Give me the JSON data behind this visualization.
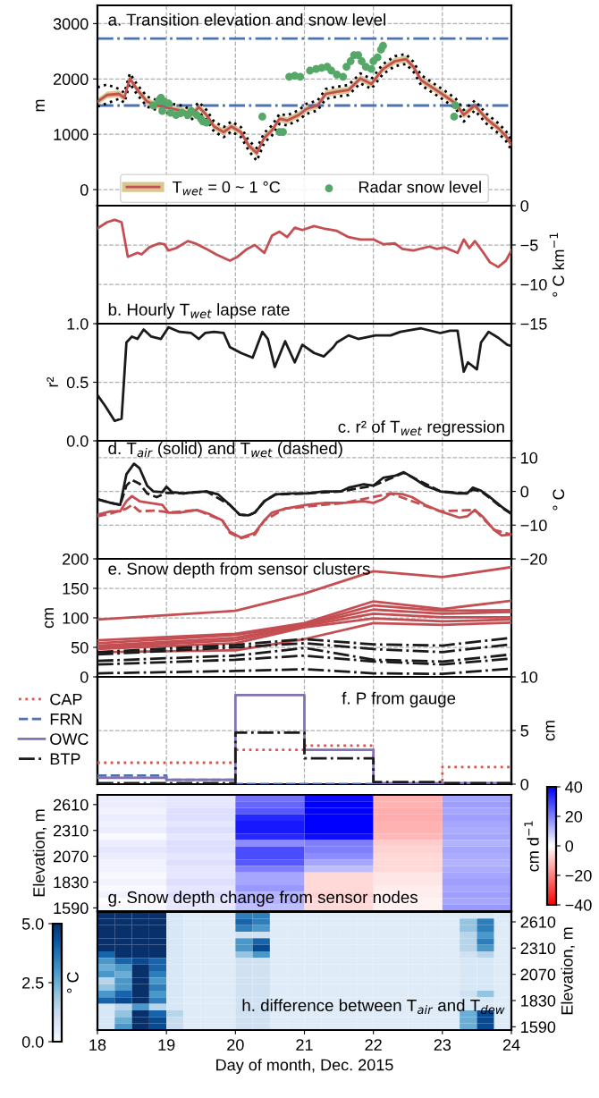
{
  "chart_data": [
    {
      "type": "line",
      "title": "a. Transition elevation and snow level",
      "ylabel": "m",
      "xlim": [
        18,
        24
      ],
      "xticks": [
        18,
        19,
        20,
        21,
        22,
        23,
        24
      ],
      "ylim": [
        -290,
        3330
      ],
      "yticks": [
        0,
        1000,
        2000,
        3000
      ],
      "tick_labels": "y",
      "grid": true,
      "legend": "bottom",
      "x": [
        18.0,
        18.14,
        18.31,
        18.39,
        18.47,
        18.58,
        18.72,
        18.92,
        19.08,
        19.25,
        19.36,
        19.47,
        19.58,
        19.69,
        19.83,
        19.94,
        20.08,
        20.19,
        20.31,
        20.42,
        20.53,
        20.64,
        20.75,
        20.92,
        21.03,
        21.19,
        21.31,
        21.47,
        21.64,
        21.81,
        21.97,
        22.14,
        22.31,
        22.47,
        22.58,
        22.69,
        22.86,
        23.03,
        23.19,
        23.31,
        23.47,
        23.64,
        23.81,
        23.92,
        24.0
      ],
      "ref_lines": [
        {
          "axis": "y",
          "value": 2730,
          "color": "#4c72b0",
          "line_style": "dashdot"
        },
        {
          "axis": "y",
          "value": 1520,
          "color": "#4c72b0",
          "line_style": "dashdot"
        }
      ],
      "series": [
        {
          "type": "line",
          "color": "#000000",
          "line_style": "dotted",
          "values": [
            1500,
            1560,
            1640,
            1570,
            1920,
            1710,
            1500,
            1410,
            1370,
            1330,
            1260,
            1400,
            1260,
            1050,
            950,
            1050,
            950,
            710,
            520,
            850,
            980,
            1190,
            1160,
            1260,
            1370,
            1430,
            1640,
            1680,
            1710,
            1920,
            1820,
            2090,
            2230,
            2270,
            2130,
            1890,
            1750,
            1610,
            1470,
            1230,
            1430,
            1190,
            1020,
            880,
            720
          ]
        },
        {
          "type": "line",
          "color": "#000000",
          "line_style": "dotted",
          "values": [
            1850,
            1900,
            1820,
            1750,
            2100,
            1890,
            1680,
            1590,
            1550,
            1510,
            1440,
            1580,
            1440,
            1230,
            1130,
            1230,
            1130,
            890,
            750,
            1030,
            1160,
            1370,
            1340,
            1440,
            1550,
            1610,
            1820,
            1860,
            1890,
            2100,
            2000,
            2270,
            2410,
            2450,
            2310,
            2070,
            1930,
            1790,
            1650,
            1440,
            1610,
            1370,
            1200,
            1060,
            900
          ]
        },
        {
          "type": "line",
          "name": "T$_{wet}$ = 0 ~ 1 °C",
          "color": "#c44e52",
          "line_style": "solid",
          "values": [
            1590,
            1710,
            1730,
            1660,
            2010,
            1800,
            1590,
            1500,
            1460,
            1420,
            1350,
            1490,
            1350,
            1140,
            1040,
            1140,
            1040,
            800,
            660,
            940,
            1070,
            1280,
            1250,
            1350,
            1460,
            1520,
            1730,
            1770,
            1800,
            2010,
            1910,
            2180,
            2320,
            2360,
            2220,
            1980,
            1840,
            1700,
            1560,
            1350,
            1520,
            1280,
            1110,
            970,
            810
          ],
          "lower": [
            1530,
            1650,
            1670,
            1600,
            1950,
            1740,
            1530,
            1440,
            1400,
            1360,
            1290,
            1430,
            1290,
            1080,
            980,
            1080,
            980,
            740,
            600,
            880,
            1010,
            1220,
            1190,
            1290,
            1400,
            1460,
            1670,
            1710,
            1740,
            1950,
            1850,
            2120,
            2260,
            2300,
            2160,
            1920,
            1780,
            1640,
            1500,
            1290,
            1460,
            1220,
            1050,
            910,
            750
          ],
          "upper": [
            1650,
            1770,
            1790,
            1720,
            2070,
            1860,
            1650,
            1560,
            1520,
            1480,
            1410,
            1550,
            1410,
            1200,
            1100,
            1200,
            1100,
            860,
            720,
            1000,
            1130,
            1340,
            1310,
            1410,
            1520,
            1580,
            1790,
            1830,
            1860,
            2070,
            1970,
            2240,
            2380,
            2420,
            2280,
            2040,
            1900,
            1760,
            1620,
            1410,
            1580,
            1340,
            1170,
            1030,
            870
          ]
        },
        {
          "type": "scatter",
          "name": "Radar snow level",
          "color": "#55a868",
          "marker": "circle",
          "x": [
            18.81,
            18.89,
            18.92,
            18.97,
            19.03,
            18.94,
            19.06,
            19.14,
            19.22,
            19.31,
            19.36,
            19.44,
            19.5,
            19.53,
            19.58,
            20.39,
            20.64,
            20.69,
            20.78,
            20.86,
            20.94,
            21.08,
            21.17,
            21.25,
            21.33,
            21.39,
            21.47,
            21.56,
            21.61,
            21.67,
            21.72,
            21.78,
            21.83,
            21.89,
            21.97,
            22.0,
            22.06,
            22.11,
            22.14,
            23.19,
            23.17
          ],
          "values": [
            1520,
            1610,
            1660,
            1590,
            1560,
            1420,
            1390,
            1350,
            1390,
            1350,
            1420,
            1350,
            1280,
            1230,
            1210,
            1320,
            1040,
            1040,
            2040,
            2060,
            2040,
            2150,
            2180,
            2200,
            2220,
            2150,
            2080,
            2040,
            2220,
            2320,
            2430,
            2430,
            2320,
            2220,
            2180,
            2320,
            2390,
            2530,
            2600,
            1520,
            1320
          ]
        }
      ]
    },
    {
      "type": "line",
      "title": "b. Hourly T$_{wet}$ lapse rate",
      "y2label": "° C km$^{−1}$",
      "xlim": [
        18,
        24
      ],
      "xticks": [
        18,
        19,
        20,
        21,
        22,
        23,
        24
      ],
      "y2lim": [
        -15,
        0
      ],
      "y2ticks": [
        0,
        {
          "value": -5,
          "label": "−5"
        },
        {
          "value": -10,
          "label": "−10"
        },
        {
          "value": -15,
          "label": "−15"
        }
      ],
      "tick_labels": "y",
      "grid": true,
      "series": [
        {
          "axis": "y2",
          "color": "#c44e52",
          "x": [
            18.0,
            18.14,
            18.25,
            18.35,
            18.44,
            18.58,
            18.64,
            18.75,
            18.89,
            18.97,
            19.03,
            19.14,
            19.31,
            19.42,
            19.58,
            19.72,
            19.92,
            20.03,
            20.17,
            20.28,
            20.42,
            20.53,
            20.64,
            20.75,
            20.86,
            20.97,
            21.14,
            21.28,
            21.47,
            21.64,
            21.81,
            22.0,
            22.14,
            22.31,
            22.42,
            22.58,
            22.81,
            22.92,
            23.03,
            23.22,
            23.31,
            23.39,
            23.47,
            23.58,
            23.69,
            23.81,
            23.92,
            24.0
          ],
          "values": [
            -2.9,
            -2.1,
            -1.8,
            -2.1,
            -6.5,
            -6.0,
            -6.2,
            -5.3,
            -4.8,
            -4.9,
            -5.7,
            -5.4,
            -4.5,
            -4.8,
            -5.5,
            -6.2,
            -7.0,
            -6.5,
            -5.5,
            -5.0,
            -6.0,
            -3.8,
            -3.3,
            -4.0,
            -2.8,
            -3.1,
            -2.6,
            -2.9,
            -3.2,
            -4.0,
            -4.3,
            -4.3,
            -4.9,
            -4.8,
            -5.5,
            -5.7,
            -5.2,
            -5.5,
            -5.3,
            -6.0,
            -4.3,
            -5.4,
            -4.5,
            -5.8,
            -7.2,
            -7.8,
            -7.0,
            -5.7
          ]
        }
      ]
    },
    {
      "type": "line",
      "title": "c. r² of T$_{wet}$ regression",
      "ylabel": "r²",
      "xlim": [
        18,
        24
      ],
      "xticks": [
        18,
        19,
        20,
        21,
        22,
        23,
        24
      ],
      "ylim": [
        0,
        1
      ],
      "yticks": [
        {
          "value": 0,
          "label": "0.0"
        },
        {
          "value": 0.5,
          "label": "0.5"
        },
        {
          "value": 1,
          "label": "1.0"
        }
      ],
      "tick_labels": "y",
      "grid": true,
      "series": [
        {
          "color": "#1a1a1a",
          "x": [
            18.0,
            18.11,
            18.25,
            18.35,
            18.42,
            18.5,
            18.58,
            18.67,
            18.78,
            18.92,
            19.03,
            19.19,
            19.36,
            19.47,
            19.56,
            19.69,
            19.83,
            19.92,
            20.08,
            20.25,
            20.39,
            20.47,
            20.57,
            20.72,
            20.86,
            20.97,
            21.14,
            21.28,
            21.42,
            21.47,
            21.64,
            21.78,
            22.03,
            22.25,
            22.39,
            22.69,
            22.97,
            23.11,
            23.22,
            23.31,
            23.37,
            23.5,
            23.56,
            23.67,
            23.81,
            23.94,
            24.0
          ],
          "values": [
            0.39,
            0.3,
            0.17,
            0.19,
            0.84,
            0.89,
            0.87,
            0.95,
            0.89,
            0.87,
            0.97,
            0.93,
            0.92,
            0.87,
            0.92,
            0.93,
            0.92,
            0.8,
            0.75,
            0.71,
            0.93,
            0.87,
            0.63,
            0.85,
            0.67,
            0.82,
            0.75,
            0.72,
            0.8,
            0.84,
            0.9,
            0.87,
            0.9,
            0.9,
            0.93,
            0.96,
            0.92,
            0.94,
            0.94,
            0.59,
            0.67,
            0.61,
            0.84,
            0.93,
            0.88,
            0.82,
            0.81
          ]
        }
      ]
    },
    {
      "type": "line",
      "title": "d. T$_{air}$ (solid) and T$_{wet}$ (dashed)",
      "y2label": "° C",
      "xlim": [
        18,
        24
      ],
      "xticks": [
        18,
        19,
        20,
        21,
        22,
        23,
        24
      ],
      "y2lim": [
        -20,
        15
      ],
      "y2ticks": [
        10,
        0,
        {
          "value": -10,
          "label": "−10"
        },
        {
          "value": -20,
          "label": "−20"
        }
      ],
      "tick_labels": "y",
      "grid": true,
      "series": [
        {
          "axis": "y2",
          "color": "#1a1a1a",
          "line_style": "solid",
          "x": [
            18.0,
            18.19,
            18.33,
            18.42,
            18.53,
            18.61,
            18.72,
            18.81,
            18.94,
            19.0,
            19.08,
            19.25,
            19.42,
            19.58,
            19.75,
            19.92,
            20.06,
            20.19,
            20.28,
            20.42,
            20.58,
            20.81,
            21.03,
            21.28,
            21.53,
            21.64,
            21.86,
            22.0,
            22.14,
            22.31,
            22.44,
            22.58,
            22.75,
            22.97,
            23.22,
            23.36,
            23.44,
            23.56,
            23.69,
            23.86,
            24.0
          ],
          "values": [
            -2.3,
            -3.4,
            -4.0,
            5.1,
            8.2,
            6.9,
            1.7,
            0,
            -0.2,
            1.4,
            -0.2,
            -0.6,
            -0.2,
            0,
            -0.9,
            -4.0,
            -6.9,
            -7.1,
            -6.3,
            -2.9,
            -0.9,
            -0.6,
            -0.6,
            0,
            0,
            1.1,
            2.1,
            1.7,
            4.0,
            4.6,
            5.7,
            4.0,
            1.7,
            0,
            -0.6,
            -0.6,
            1.1,
            0.2,
            -1.7,
            -4.6,
            -6.6
          ]
        },
        {
          "axis": "y2",
          "color": "#1a1a1a",
          "line_style": "dashed",
          "x": [
            18.0,
            18.19,
            18.33,
            18.42,
            18.5,
            18.61,
            18.72,
            18.86,
            19.0,
            19.25,
            19.58,
            19.92,
            20.06,
            20.19,
            20.28,
            20.42,
            20.58,
            21.03,
            21.53,
            22.0,
            22.44,
            22.97,
            23.36,
            23.44,
            23.56,
            23.69,
            23.86,
            24.0
          ],
          "values": [
            -2.3,
            -3.4,
            -4.0,
            1.7,
            3.4,
            2.3,
            -0.6,
            -1.7,
            -0.4,
            -0.6,
            0,
            -4.0,
            -6.9,
            -7.1,
            -6.3,
            -2.9,
            -0.9,
            -0.6,
            0,
            1.7,
            5.5,
            0,
            -0.6,
            0.5,
            0,
            -2.0,
            -4.8,
            -6.6
          ]
        },
        {
          "axis": "y2",
          "color": "#c44e52",
          "line_style": "solid",
          "x": [
            18.0,
            18.19,
            18.33,
            18.42,
            18.5,
            18.61,
            18.75,
            18.94,
            19.03,
            19.19,
            19.44,
            19.61,
            19.81,
            19.92,
            20.08,
            20.28,
            20.42,
            20.53,
            20.72,
            21.03,
            21.31,
            21.58,
            21.86,
            22.0,
            22.14,
            22.25,
            22.42,
            22.56,
            22.75,
            22.97,
            23.25,
            23.36,
            23.47,
            23.58,
            23.75,
            23.86,
            24.0
          ],
          "values": [
            -6.9,
            -5.9,
            -5.9,
            -2.9,
            -1.4,
            -2.9,
            -3.4,
            -4.0,
            -6.3,
            -6.3,
            -5.5,
            -6.6,
            -8.6,
            -12.0,
            -13.7,
            -12.3,
            -8.6,
            -6.3,
            -5.1,
            -4.0,
            -3.4,
            -3.4,
            -2.9,
            -3.4,
            -2.3,
            -0.6,
            -0.8,
            -1.7,
            -4.0,
            -5.9,
            -7.8,
            -7.4,
            -5.5,
            -7.4,
            -11.4,
            -13.1,
            -12.8
          ]
        },
        {
          "axis": "y2",
          "color": "#c44e52",
          "line_style": "dashed",
          "x": [
            18.0,
            18.19,
            18.42,
            18.5,
            18.61,
            18.81,
            18.94,
            19.03,
            19.44,
            19.81,
            19.92,
            20.08,
            20.28,
            20.42,
            20.72,
            21.58,
            22.25,
            22.97,
            23.47,
            23.75,
            24.0
          ],
          "values": [
            -7.4,
            -6.6,
            -5.1,
            -4.0,
            -5.9,
            -5.7,
            -5.9,
            -6.3,
            -5.5,
            -8.6,
            -12.3,
            -13.9,
            -12.8,
            -8.6,
            -5.1,
            -3.4,
            -0.6,
            -5.9,
            -5.5,
            -11.4,
            -12.8
          ]
        }
      ]
    },
    {
      "type": "line",
      "title": "e. Snow depth from sensor clusters",
      "ylabel": "cm",
      "xlim": [
        18,
        24
      ],
      "xticks": [
        18,
        19,
        20,
        21,
        22,
        23,
        24
      ],
      "ylim": [
        0,
        200
      ],
      "yticks": [
        0,
        50,
        100,
        150,
        200
      ],
      "tick_labels": "y",
      "grid": true,
      "x": [
        18,
        20,
        21,
        22,
        23,
        24
      ],
      "series": [
        {
          "color": "#c44e52",
          "line_style": "solid",
          "values": [
            97,
            112,
            141,
            179,
            169,
            186
          ]
        },
        {
          "color": "#c44e52",
          "line_style": "solid",
          "values": [
            62,
            73,
            91,
            128,
            115,
            129
          ]
        },
        {
          "color": "#c44e52",
          "line_style": "solid",
          "values": [
            57,
            71,
            89,
            121,
            112,
            113
          ]
        },
        {
          "color": "#c44e52",
          "line_style": "solid",
          "values": [
            53,
            66,
            88,
            114,
            107,
            110
          ]
        },
        {
          "color": "#c44e52",
          "line_style": "solid",
          "values": [
            50,
            62,
            86,
            107,
            101,
            101
          ]
        },
        {
          "color": "#c44e52",
          "line_style": "solid",
          "values": [
            47,
            57,
            84,
            99,
            94,
            97
          ]
        },
        {
          "color": "#c44e52",
          "line_style": "solid",
          "values": [
            42,
            45,
            64,
            91,
            88,
            92
          ]
        },
        {
          "color": "#1a1a1a",
          "line_style": "dashdot",
          "values": [
            42,
            54,
            64,
            55,
            53,
            66
          ]
        },
        {
          "color": "#1a1a1a",
          "line_style": "dashdot",
          "values": [
            38,
            50,
            57,
            47,
            42,
            55
          ]
        },
        {
          "color": "#1a1a1a",
          "line_style": "dashdot",
          "values": [
            27,
            36,
            49,
            29,
            26,
            38
          ]
        },
        {
          "color": "#1a1a1a",
          "line_style": "dashdot",
          "values": [
            21,
            29,
            36,
            26,
            21,
            31
          ]
        },
        {
          "color": "#1a1a1a",
          "line_style": "dashdot",
          "values": [
            6,
            10,
            13,
            6,
            5,
            14
          ]
        }
      ]
    },
    {
      "type": "step",
      "title": "f. P from gauge",
      "y2label": "cm",
      "xlim": [
        18,
        24
      ],
      "xticks": [
        18,
        19,
        20,
        21,
        22,
        23,
        24
      ],
      "y2lim": [
        0,
        10
      ],
      "y2ticks": [
        0,
        5,
        10
      ],
      "tick_labels": "y",
      "grid": true,
      "legend": "left",
      "x": [
        18,
        19,
        20,
        21,
        22,
        23,
        24
      ],
      "series": [
        {
          "axis": "y2",
          "name": "CAP",
          "color": "#d9534f",
          "line_style": "dotted",
          "values": [
            2.0,
            2.0,
            3.2,
            3.6,
            0.1,
            1.6,
            1.6
          ]
        },
        {
          "axis": "y2",
          "name": "FRN",
          "color": "#4c72b0",
          "line_style": "dashed",
          "values": [
            0.8,
            0.4,
            0,
            0,
            0,
            0,
            0
          ]
        },
        {
          "axis": "y2",
          "name": "OWC",
          "color": "#8172b2",
          "line_style": "solid",
          "values": [
            0.6,
            0.4,
            8.3,
            3.2,
            0.1,
            0.1,
            0.1
          ]
        },
        {
          "axis": "y2",
          "name": "BTP",
          "color": "#1a1a1a",
          "line_style": "dashdot",
          "values": [
            0.1,
            0.1,
            4.8,
            2.4,
            0.2,
            0.1,
            0.1
          ]
        }
      ]
    },
    {
      "type": "heatmap",
      "title": "g. Snow depth change from sensor nodes",
      "ylabel": "Elevation, m",
      "clabel": "cm d$^{−1}$",
      "xlim": [
        18,
        24
      ],
      "xticks": [
        18,
        19,
        20,
        21,
        22,
        23,
        24
      ],
      "tick_labels": "y",
      "x": [
        18.5,
        19.5,
        20.5,
        21.5,
        22.5,
        23.5
      ],
      "y_categories": [
        null,
        "2610",
        null,
        null,
        null,
        "2310",
        null,
        null,
        null,
        "2070",
        null,
        null,
        null,
        "1830",
        null,
        null,
        null,
        "1590"
      ],
      "clim": [
        -40,
        40
      ],
      "cticks": [
        {
          "value": 40,
          "label": "40"
        },
        {
          "value": 20,
          "label": "20"
        },
        {
          "value": 0,
          "label": "0"
        },
        {
          "value": -20,
          "label": "−20"
        },
        {
          "value": -40,
          "label": "−40"
        }
      ],
      "cells": [
        [
          3,
          4,
          22,
          38,
          -12,
          14
        ],
        [
          3,
          4,
          24,
          40,
          -12,
          15
        ],
        [
          2,
          5,
          26,
          40,
          -13,
          14
        ],
        [
          3,
          5,
          34,
          40,
          -13,
          15
        ],
        [
          2,
          4,
          36,
          40,
          -12,
          14
        ],
        [
          3,
          5,
          36,
          40,
          -12,
          13
        ],
        [
          1,
          4,
          34,
          38,
          -11,
          14
        ],
        [
          3,
          5,
          18,
          20,
          -8,
          12
        ],
        [
          4,
          5,
          28,
          20,
          -7,
          14
        ],
        [
          3,
          4,
          28,
          18,
          -6,
          13
        ],
        [
          2,
          5,
          26,
          14,
          -6,
          12
        ],
        [
          2,
          4,
          20,
          10,
          -6,
          13
        ],
        [
          1,
          4,
          14,
          -6,
          -4,
          14
        ],
        [
          2,
          5,
          14,
          -6,
          -4,
          15
        ],
        [
          1,
          4,
          16,
          -6,
          -3,
          14
        ],
        [
          2,
          5,
          12,
          -7,
          -3,
          15
        ],
        [
          0,
          4,
          12,
          -6,
          -2,
          14
        ],
        [
          1,
          4,
          10,
          -6,
          -2,
          16
        ]
      ]
    },
    {
      "type": "heatmap",
      "title": "h. difference between T$_{air}$ and T$_{dew}$",
      "xlabel": "Day of month, Dec. 2015",
      "ylabel": "Elevation, m",
      "clabel": "° C",
      "xlim": [
        18,
        24
      ],
      "xticks": [
        18,
        19,
        20,
        21,
        22,
        23,
        24
      ],
      "x": [
        18.125,
        18.375,
        18.625,
        18.875,
        19.125,
        19.375,
        19.625,
        19.875,
        20.125,
        20.375,
        20.625,
        20.875,
        21.125,
        21.375,
        21.625,
        21.875,
        22.125,
        22.375,
        22.625,
        22.875,
        23.125,
        23.375,
        23.625,
        23.875
      ],
      "y_categories": [
        null,
        "2610",
        null,
        null,
        null,
        "2310",
        null,
        null,
        null,
        "2070",
        null,
        null,
        null,
        "1830",
        null,
        null,
        null,
        "1590"
      ],
      "clim": [
        0,
        5
      ],
      "cticks": [
        {
          "value": 0,
          "label": "0.0"
        },
        {
          "value": 2.5,
          "label": "2.5"
        },
        {
          "value": 5,
          "label": "5.0"
        }
      ],
      "cells": [
        [
          5,
          5,
          5,
          5,
          0.8,
          0.6,
          0.6,
          0.6,
          3.5,
          3.5,
          0.6,
          0.6,
          0.6,
          0.6,
          0.6,
          0.6,
          0.6,
          0.6,
          0.6,
          0.6,
          0.6,
          0.8,
          0.8,
          0.6
        ],
        [
          5,
          5,
          5,
          5,
          0.8,
          0.6,
          0.6,
          0.6,
          4,
          3.5,
          0.6,
          0.6,
          0.6,
          0.6,
          0.6,
          0.6,
          0.6,
          0.6,
          0.6,
          0.6,
          0.6,
          2,
          3.5,
          0.6
        ],
        [
          5,
          5,
          5,
          5,
          0.8,
          0.6,
          0.6,
          0.6,
          3.5,
          3,
          0.6,
          0.6,
          0.6,
          0.6,
          0.6,
          0.6,
          0.6,
          0.6,
          0.6,
          0.6,
          0.6,
          2,
          3.5,
          0.6
        ],
        [
          5,
          5,
          5,
          5,
          0.8,
          0.6,
          0.6,
          0.6,
          1,
          1,
          0.6,
          0.6,
          0.6,
          0.6,
          0.6,
          0.6,
          0.6,
          0.6,
          0.6,
          0.6,
          0.6,
          1.5,
          3,
          0.6
        ],
        [
          5,
          5,
          5,
          5,
          0.8,
          0.6,
          0.6,
          0.6,
          3,
          4,
          0.6,
          0.6,
          0.6,
          0.6,
          0.6,
          0.6,
          0.6,
          0.6,
          0.6,
          0.6,
          0.6,
          1.5,
          3.5,
          0.6
        ],
        [
          5,
          5,
          5,
          5,
          0.8,
          0.6,
          0.6,
          0.6,
          3,
          4.5,
          0.6,
          0.6,
          0.6,
          0.6,
          0.6,
          0.6,
          0.6,
          0.6,
          0.6,
          0.6,
          0.6,
          1.5,
          3,
          0.6
        ],
        [
          4,
          5,
          5,
          5,
          0.8,
          0.6,
          0.6,
          0.6,
          2,
          3,
          0.6,
          0.6,
          0.6,
          0.6,
          0.6,
          0.6,
          0.6,
          0.6,
          0.6,
          0.6,
          0.6,
          1,
          1.5,
          0.6
        ],
        [
          3,
          4,
          4.5,
          4,
          0.8,
          0.6,
          0.6,
          0.6,
          1,
          1,
          0.6,
          0.6,
          0.6,
          0.6,
          0.6,
          0.6,
          0.6,
          0.6,
          0.6,
          0.6,
          0.6,
          0.8,
          0.8,
          0.6
        ],
        [
          2.5,
          3,
          5,
          4,
          0.8,
          0.6,
          0.6,
          0.6,
          1,
          1,
          0.6,
          0.6,
          0.6,
          0.6,
          0.6,
          0.6,
          0.6,
          0.6,
          0.6,
          0.6,
          0.6,
          0.8,
          0.8,
          0.6
        ],
        [
          3,
          2.5,
          5,
          3.5,
          0.8,
          0.6,
          0.6,
          0.6,
          1,
          1,
          0.6,
          0.6,
          0.6,
          0.6,
          0.6,
          0.6,
          0.6,
          0.6,
          0.6,
          0.6,
          0.6,
          0.8,
          0.8,
          0.6
        ],
        [
          1.5,
          3,
          5,
          3,
          0.8,
          0.6,
          0.6,
          0.6,
          1,
          1,
          0.6,
          0.6,
          0.6,
          0.6,
          0.6,
          0.6,
          0.6,
          0.6,
          0.6,
          0.6,
          0.6,
          0.8,
          0.8,
          0.6
        ],
        [
          2,
          3,
          5,
          3.5,
          0.8,
          0.6,
          0.6,
          0.6,
          1,
          1,
          0.6,
          0.6,
          0.6,
          0.6,
          0.6,
          0.6,
          0.6,
          0.6,
          0.6,
          0.6,
          0.6,
          0.8,
          0.8,
          0.6
        ],
        [
          3,
          4,
          5,
          3,
          0.8,
          0.6,
          0.6,
          0.6,
          1,
          1,
          0.6,
          0.6,
          0.6,
          0.6,
          0.6,
          0.6,
          0.6,
          0.6,
          0.6,
          0.6,
          0.6,
          1,
          2,
          0.6
        ],
        [
          4,
          4.5,
          5,
          3.5,
          0.8,
          0.6,
          0.6,
          0.6,
          1,
          1,
          0.6,
          0.6,
          0.6,
          0.6,
          0.6,
          0.6,
          0.6,
          0.6,
          0.6,
          0.6,
          0.6,
          0.8,
          0.8,
          0.6
        ],
        [
          0.8,
          1.5,
          3,
          1.5,
          0.8,
          0.6,
          0.6,
          0.6,
          1,
          1,
          0.6,
          0.6,
          0.6,
          0.6,
          0.6,
          0.6,
          0.6,
          0.6,
          0.6,
          0.6,
          0.6,
          0.8,
          0.8,
          0.6
        ],
        [
          0.8,
          2,
          5,
          4,
          1.5,
          0.6,
          0.6,
          0.6,
          1,
          1,
          0.6,
          0.6,
          0.6,
          0.6,
          0.6,
          0.6,
          0.6,
          0.6,
          0.6,
          0.6,
          0.6,
          2.5,
          4.5,
          0.6
        ],
        [
          0.8,
          2.5,
          5,
          4.5,
          1.2,
          0.6,
          0.6,
          0.6,
          1,
          1,
          0.6,
          0.6,
          0.6,
          0.6,
          0.6,
          0.6,
          0.6,
          0.6,
          0.6,
          0.6,
          0.6,
          2.5,
          4.5,
          0.6
        ],
        [
          0.8,
          3,
          5,
          4.5,
          1.2,
          0.6,
          0.6,
          0.6,
          1,
          1,
          0.6,
          0.6,
          0.6,
          0.6,
          0.6,
          0.6,
          0.6,
          0.6,
          0.6,
          0.6,
          0.6,
          2.5,
          4.5,
          0.6
        ]
      ]
    }
  ]
}
